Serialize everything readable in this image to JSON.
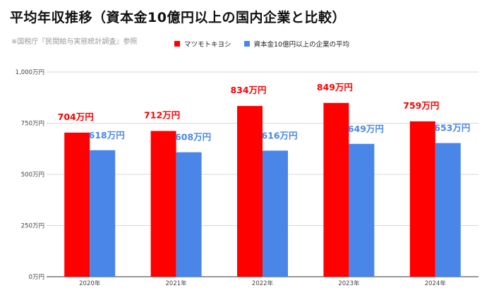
{
  "title": "平均年収推移（資本金10億円以上の国内企業と比較）",
  "source_note": "※国税庁『民間給与実態統計調査』参照",
  "colors": {
    "series1": "#ff0000",
    "series2": "#4a86e8"
  },
  "chart_data": {
    "type": "bar",
    "categories": [
      "2020年",
      "2021年",
      "2022年",
      "2023年",
      "2024年"
    ],
    "series": [
      {
        "name": "マツモトキヨシ",
        "values": [
          704,
          712,
          834,
          849,
          759
        ],
        "labels": [
          "704万円",
          "712万円",
          "834万円",
          "849万円",
          "759万円"
        ]
      },
      {
        "name": "資本金10億円以上の企業の平均",
        "values": [
          618,
          608,
          616,
          649,
          653
        ],
        "labels": [
          "618万円",
          "608万円",
          "616万円",
          "649万円",
          "653万円"
        ]
      }
    ],
    "ylim": [
      0,
      1000
    ],
    "yticks": [
      0,
      250,
      500,
      750,
      1000
    ],
    "ytick_labels": [
      "0万円",
      "250万円",
      "500万円",
      "750万円",
      "1,000万円"
    ],
    "grid": true,
    "legend": "top-center",
    "xlabel": "",
    "ylabel": ""
  }
}
